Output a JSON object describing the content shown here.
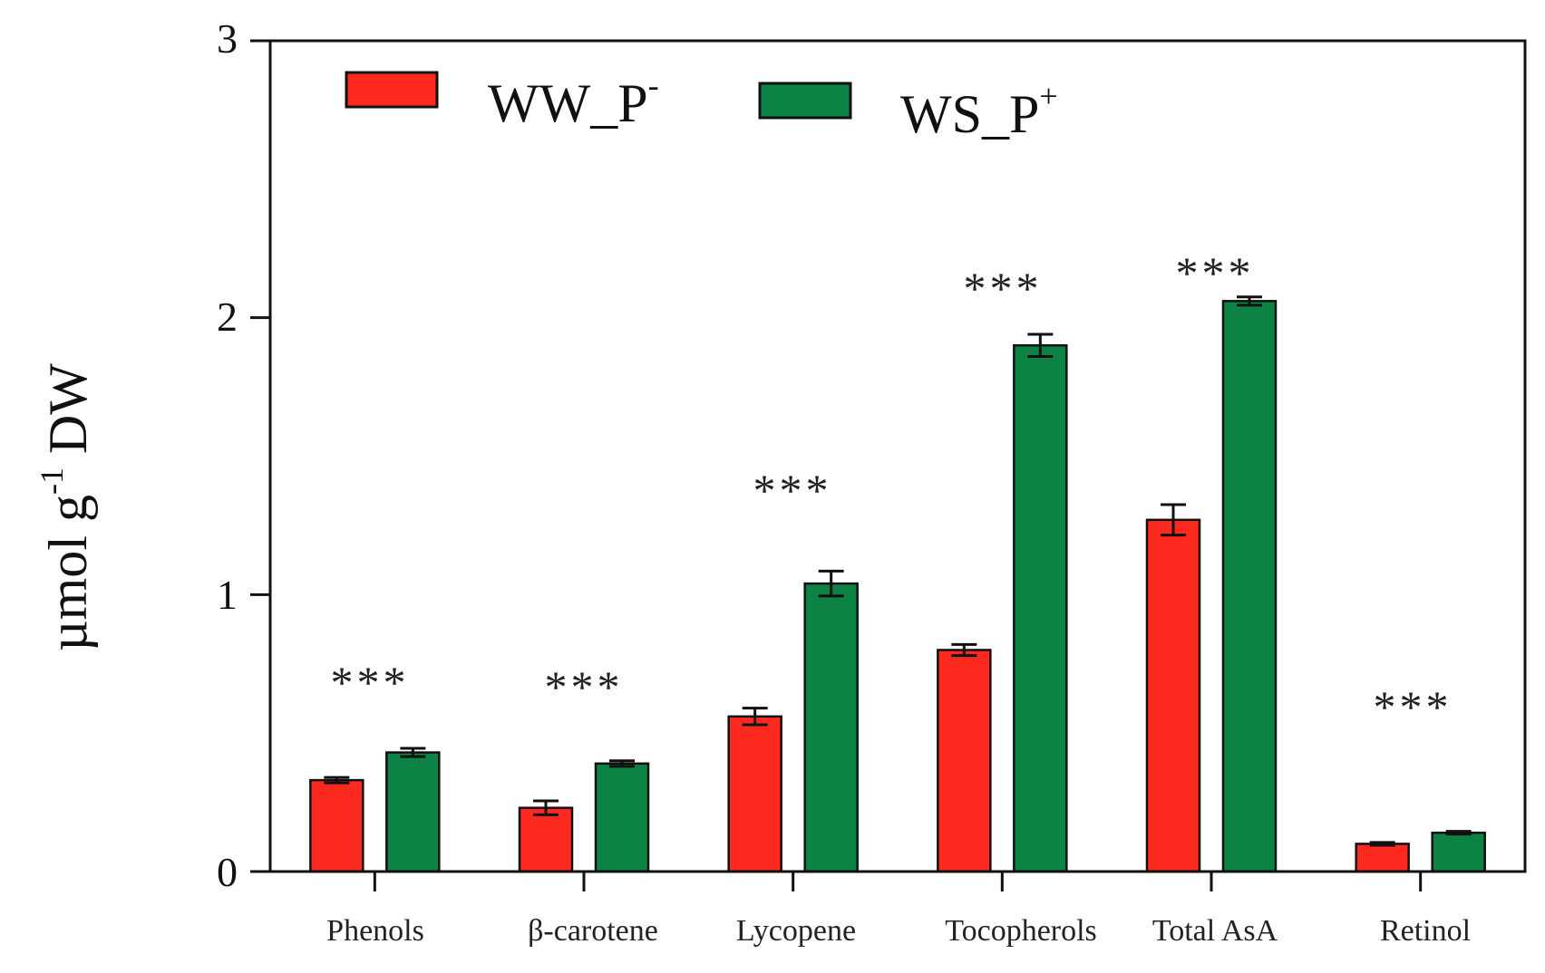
{
  "chart_data": {
    "type": "bar",
    "title": "",
    "xlabel": "",
    "ylabel": {
      "base": "µmol g",
      "sup": "-1",
      "tail": " DW"
    },
    "ylim": [
      0,
      3
    ],
    "yticks": [
      "0",
      "1",
      "2",
      "3"
    ],
    "grid": false,
    "legend_position": "top-left",
    "categories": [
      "Phenols",
      "β-carotene",
      "Lycopene",
      "Tocopherols",
      "Total AsA",
      "Retinol"
    ],
    "series": [
      {
        "name": "WW_P-",
        "label_base": "WW_P",
        "label_sup": "-",
        "color": "#ff2a1f",
        "values": [
          0.33,
          0.23,
          0.56,
          0.8,
          1.27,
          0.1
        ],
        "errors": [
          0.01,
          0.025,
          0.03,
          0.02,
          0.055,
          0.005
        ]
      },
      {
        "name": "WS_P+",
        "label_base": "WS_P",
        "label_sup": "+",
        "color": "#0c8244",
        "values": [
          0.43,
          0.39,
          1.04,
          1.9,
          2.06,
          0.14
        ],
        "errors": [
          0.015,
          0.01,
          0.045,
          0.04,
          0.015,
          0.005
        ]
      }
    ],
    "significance": [
      "***",
      "***",
      "***",
      "***",
      "***",
      "***"
    ]
  }
}
